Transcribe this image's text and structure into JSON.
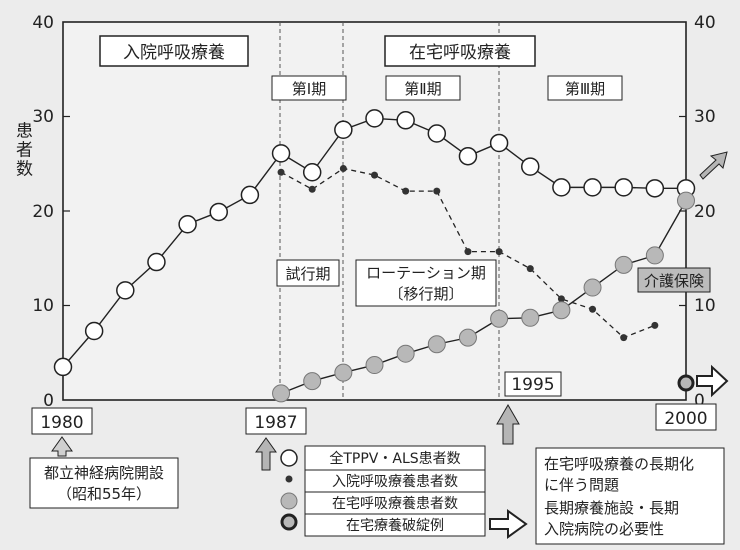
{
  "chart_data": {
    "type": "line",
    "ylabel": "患者数",
    "ylim": [
      0,
      40
    ],
    "yticks": [
      0,
      10,
      20,
      30,
      40
    ],
    "xlim": [
      1980,
      2000
    ],
    "x_labels": [
      "1980",
      "1987",
      "1995",
      "2000"
    ],
    "series": [
      {
        "name": "全TPPV・ALS患者数",
        "x": [
          1980,
          1981,
          1982,
          1983,
          1984,
          1985,
          1986,
          1987,
          1988,
          1989,
          1990,
          1991,
          1992,
          1993,
          1994,
          1995,
          1996,
          1997,
          1998,
          1999,
          2000
        ],
        "values": [
          3.5,
          7.3,
          11.6,
          14.6,
          18.6,
          19.9,
          21.7,
          26.1,
          24.1,
          28.6,
          29.8,
          29.6,
          28.2,
          25.8,
          27.2,
          24.7,
          22.5,
          22.5,
          22.5,
          22.4,
          22.4
        ]
      },
      {
        "name": "入院呼吸療養患者数",
        "x": [
          1987,
          1988,
          1989,
          1990,
          1991,
          1992,
          1993,
          1994,
          1995,
          1996,
          1997,
          1998,
          1999
        ],
        "values": [
          24.1,
          22.3,
          24.5,
          23.8,
          22.1,
          22.1,
          15.7,
          15.7,
          13.9,
          10.7,
          9.6,
          6.6,
          7.9
        ]
      },
      {
        "name": "在宅呼吸療養患者数",
        "x": [
          1987,
          1988,
          1989,
          1990,
          1991,
          1992,
          1993,
          1994,
          1995,
          1996,
          1997,
          1998,
          1999,
          2000
        ],
        "values": [
          0.7,
          2.0,
          2.9,
          3.7,
          4.9,
          5.9,
          6.6,
          8.6,
          8.7,
          9.5,
          11.9,
          14.3,
          15.3,
          21.1
        ]
      },
      {
        "name": "在宅療養破綻例",
        "x": [
          2000
        ],
        "values": [
          1.8
        ]
      }
    ],
    "eras": {
      "hospital": "入院呼吸療養",
      "home": "在宅呼吸療養",
      "phase1": "第Ⅰ期",
      "phase2": "第Ⅱ期",
      "phase3": "第Ⅲ期",
      "trial": "試行期",
      "rotation_l1": "ローテーション期",
      "rotation_l2": "〔移行期〕",
      "care": "介護保険"
    },
    "notes": {
      "opening_l1": "都立神経病院開設",
      "opening_l2": "（昭和55年）",
      "issue_l1": "在宅呼吸療養の長期化",
      "issue_l2": "に伴う問題",
      "issue_l3": "長期療養施設・長期",
      "issue_l4": "入院病院の必要性"
    }
  }
}
